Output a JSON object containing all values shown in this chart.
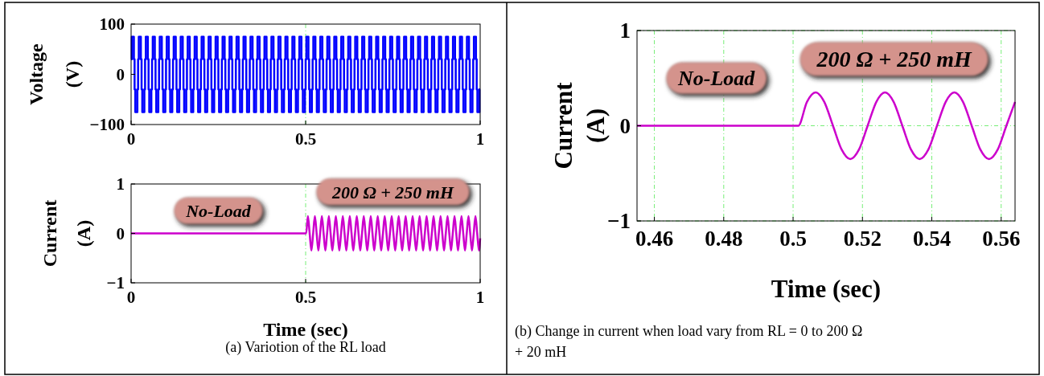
{
  "chart_data": [
    {
      "type": "step",
      "ylabel": "Voltage (V)",
      "xlim": [
        0,
        1
      ],
      "xticks": [
        0,
        0.5,
        1
      ],
      "ylim": [
        -100,
        100
      ],
      "yticks": [
        100,
        0,
        -100
      ],
      "ref_lines": [
        {
          "axis": "x",
          "value": 0.5,
          "color": "#77ee77",
          "line_style": "dashed"
        }
      ],
      "series": [
        {
          "color": "#0000ff",
          "x": [
            0,
            0.002,
            0.008,
            0.01,
            0.012,
            0.018,
            0.02,
            0.022,
            0.028,
            0.03,
            0.032,
            0.038,
            0.04,
            0.042,
            0.048,
            0.05,
            0.052,
            0.058,
            0.06,
            0.062,
            0.068,
            0.07,
            0.072,
            0.078,
            0.08,
            0.082,
            0.088,
            0.09,
            0.092,
            0.098,
            0.1,
            0.102,
            0.108,
            0.11,
            0.112,
            0.118,
            0.12,
            0.122,
            0.128,
            0.13,
            0.132,
            0.138,
            0.14,
            0.142,
            0.148,
            0.15,
            0.152,
            0.158,
            0.16,
            0.162,
            0.168,
            0.17,
            0.172,
            0.178,
            0.18,
            0.182,
            0.188,
            0.19,
            0.192,
            0.198,
            0.2,
            0.202,
            0.208,
            0.21,
            0.212,
            0.218,
            0.22,
            0.222,
            0.228,
            0.23,
            0.232,
            0.238,
            0.24,
            0.242,
            0.248,
            0.25,
            0.252,
            0.258,
            0.26,
            0.262,
            0.268,
            0.27,
            0.272,
            0.278,
            0.28,
            0.282,
            0.288,
            0.29,
            0.292,
            0.298,
            0.3,
            0.302,
            0.308,
            0.31,
            0.312,
            0.318,
            0.32,
            0.322,
            0.328,
            0.33,
            0.332,
            0.338,
            0.34,
            0.342,
            0.348,
            0.35,
            0.352,
            0.358,
            0.36,
            0.362,
            0.368,
            0.37,
            0.372,
            0.378,
            0.38,
            0.382,
            0.388,
            0.39,
            0.392,
            0.398,
            0.4,
            0.402,
            0.408,
            0.41,
            0.412,
            0.418,
            0.42,
            0.422,
            0.428,
            0.43,
            0.432,
            0.438,
            0.44,
            0.442,
            0.448,
            0.45,
            0.452,
            0.458,
            0.46,
            0.462,
            0.468,
            0.47,
            0.472,
            0.478,
            0.48,
            0.482,
            0.488,
            0.49,
            0.492,
            0.498,
            0.5,
            0.502,
            0.508,
            0.51,
            0.512,
            0.518,
            0.52,
            0.522,
            0.528,
            0.53,
            0.532,
            0.538,
            0.54,
            0.542,
            0.548,
            0.55,
            0.552,
            0.558,
            0.56,
            0.562,
            0.568,
            0.57,
            0.572,
            0.578,
            0.58,
            0.582,
            0.588,
            0.59,
            0.592,
            0.598,
            0.6,
            0.602,
            0.608,
            0.61,
            0.612,
            0.618,
            0.62,
            0.622,
            0.628,
            0.63,
            0.632,
            0.638,
            0.64,
            0.642,
            0.648,
            0.65,
            0.652,
            0.658,
            0.66,
            0.662,
            0.668,
            0.67,
            0.672,
            0.678,
            0.68,
            0.682,
            0.688,
            0.69,
            0.692,
            0.698,
            0.7,
            0.702,
            0.708,
            0.71,
            0.712,
            0.718,
            0.72,
            0.722,
            0.728,
            0.73,
            0.732,
            0.738,
            0.74,
            0.742,
            0.748,
            0.75,
            0.752,
            0.758,
            0.76,
            0.762,
            0.768,
            0.77,
            0.772,
            0.778,
            0.78,
            0.782,
            0.788,
            0.79,
            0.792,
            0.798,
            0.8,
            0.802,
            0.808,
            0.81,
            0.812,
            0.818,
            0.82,
            0.822,
            0.828,
            0.83,
            0.832,
            0.838,
            0.84,
            0.842,
            0.848,
            0.85,
            0.852,
            0.858,
            0.86,
            0.862,
            0.868,
            0.87,
            0.872,
            0.878,
            0.88,
            0.882,
            0.888,
            0.89,
            0.892,
            0.898,
            0.9,
            0.902,
            0.908,
            0.91,
            0.912,
            0.918,
            0.92,
            0.922,
            0.928,
            0.93,
            0.932,
            0.938,
            0.94,
            0.942,
            0.948,
            0.95,
            0.952,
            0.958,
            0.96,
            0.962,
            0.968,
            0.97,
            0.972,
            0.978,
            0.98,
            0.982,
            0.988,
            0.99,
            0.992,
            0.998,
            1
          ],
          "values": [
            30,
            75,
            30,
            -30,
            -75,
            -30,
            30,
            75,
            30,
            -30,
            -75,
            -30,
            30,
            75,
            30,
            -30,
            -75,
            -30,
            30,
            75,
            30,
            -30,
            -75,
            -30,
            30,
            75,
            30,
            -30,
            -75,
            -30,
            30,
            75,
            30,
            -30,
            -75,
            -30,
            30,
            75,
            30,
            -30,
            -75,
            -30,
            30,
            75,
            30,
            -30,
            -75,
            -30,
            30,
            75,
            30,
            -30,
            -75,
            -30,
            30,
            75,
            30,
            -30,
            -75,
            -30,
            30,
            75,
            30,
            -30,
            -75,
            -30,
            30,
            75,
            30,
            -30,
            -75,
            -30,
            30,
            75,
            30,
            -30,
            -75,
            -30,
            30,
            75,
            30,
            -30,
            -75,
            -30,
            30,
            75,
            30,
            -30,
            -75,
            -30,
            30,
            75,
            30,
            -30,
            -75,
            -30,
            30,
            75,
            30,
            -30,
            -75,
            -30,
            30,
            75,
            30,
            -30,
            -75,
            -30,
            30,
            75,
            30,
            -30,
            -75,
            -30,
            30,
            75,
            30,
            -30,
            -75,
            -30,
            30,
            75,
            30,
            -30,
            -75,
            -30,
            30,
            75,
            30,
            -30,
            -75,
            -30,
            30,
            75,
            30,
            -30,
            -75,
            -30,
            30,
            75,
            30,
            -30,
            -75,
            -30,
            30,
            75,
            30,
            -30,
            -75,
            -30,
            30,
            75,
            30,
            -30,
            -75,
            -30,
            30,
            75,
            30,
            -30,
            -75,
            -30,
            30,
            75,
            30,
            -30,
            -75,
            -30,
            30,
            75,
            30,
            -30,
            -75,
            -30,
            30,
            75,
            30,
            -30,
            -75,
            -30,
            30,
            75,
            30,
            -30,
            -75,
            -30,
            30,
            75,
            30,
            -30,
            -75,
            -30,
            30,
            75,
            30,
            -30,
            -75,
            -30,
            30,
            75,
            30,
            -30,
            -75,
            -30,
            30,
            75,
            30,
            -30,
            -75,
            -30,
            30,
            75,
            30,
            -30,
            -75,
            -30,
            30,
            75,
            30,
            -30,
            -75,
            -30,
            30,
            75,
            30,
            -30,
            -75,
            -30,
            30,
            75,
            30,
            -30,
            -75,
            -30,
            30,
            75,
            30,
            -30,
            -75,
            -30,
            30,
            75,
            30,
            -30,
            -75,
            -30,
            30,
            75,
            30,
            -30,
            -75,
            -30,
            30,
            75,
            30,
            -30,
            -75,
            -30,
            30,
            75,
            30,
            -30,
            -75,
            -30,
            30,
            75,
            30,
            -30,
            -75,
            -30,
            30,
            75,
            30,
            -30,
            -75,
            -30,
            30,
            75,
            30,
            -30,
            -75,
            -30,
            30,
            75,
            30,
            -30,
            -75,
            -30,
            30,
            75,
            30,
            -30,
            -75,
            -30,
            30,
            75,
            30,
            -30,
            -75,
            -30,
            -30
          ]
        }
      ]
    },
    {
      "type": "line",
      "xlabel": "Time (sec)",
      "ylabel": "Current (A)",
      "xlim": [
        0,
        1
      ],
      "xticks": [
        0,
        0.5,
        1
      ],
      "ylim": [
        -1,
        1
      ],
      "yticks": [
        1,
        0,
        -1
      ],
      "ref_lines": [
        {
          "axis": "x",
          "value": 0.5,
          "color": "#77ee77",
          "line_style": "dashed"
        }
      ],
      "annotations": [
        "No-Load",
        "200 Ω + 250 mH",
        "(a) Variotion of the RL load"
      ],
      "series": [
        {
          "color": "#cc00cc",
          "x": [
            0,
            0.5,
            0.5015,
            0.5065,
            0.5115,
            0.5165,
            0.5215,
            0.5265,
            0.5315,
            0.5365,
            0.5415,
            0.5465,
            0.5515,
            0.5565,
            0.5615,
            0.5665,
            0.5715,
            0.5765,
            0.5815,
            0.5865,
            0.5915,
            0.5965,
            0.6015,
            0.6065,
            0.6115,
            0.6165,
            0.6215,
            0.6265,
            0.6315,
            0.6365,
            0.6415,
            0.6465,
            0.6515,
            0.6565,
            0.6615,
            0.6665,
            0.6715,
            0.6765,
            0.6815,
            0.6865,
            0.6915,
            0.6965,
            0.7015,
            0.7065,
            0.7115,
            0.7165,
            0.7215,
            0.7265,
            0.7315,
            0.7365,
            0.7415,
            0.7465,
            0.7515,
            0.7565,
            0.7615,
            0.7665,
            0.7715,
            0.7765,
            0.7815,
            0.7865,
            0.7915,
            0.7965,
            0.8015,
            0.8065,
            0.8115,
            0.8165,
            0.8215,
            0.8265,
            0.8315,
            0.8365,
            0.8415,
            0.8465,
            0.8515,
            0.8565,
            0.8615,
            0.8665,
            0.8715,
            0.8765,
            0.8815,
            0.8865,
            0.8915,
            0.8965,
            0.9015,
            0.9065,
            0.9115,
            0.9165,
            0.9215,
            0.9265,
            0.9315,
            0.9365,
            0.9415,
            0.9465,
            0.9515,
            0.9565,
            0.9615,
            0.9665,
            0.9715,
            0.9765,
            0.9815,
            0.9865,
            0.9915,
            0.9965,
            1
          ],
          "values": [
            0,
            0,
            0,
            0.35,
            0,
            -0.35,
            0,
            0.35,
            0,
            -0.35,
            0,
            0.35,
            0,
            -0.35,
            0,
            0.35,
            0,
            -0.35,
            0,
            0.35,
            0,
            -0.35,
            0,
            0.35,
            0,
            -0.35,
            0,
            0.35,
            0,
            -0.35,
            0,
            0.35,
            0,
            -0.35,
            0,
            0.35,
            0,
            -0.35,
            0,
            0.35,
            0,
            -0.35,
            0,
            0.35,
            0,
            -0.35,
            0,
            0.35,
            0,
            -0.35,
            0,
            0.35,
            0,
            -0.35,
            0,
            0.35,
            0,
            -0.35,
            0,
            0.35,
            0,
            -0.35,
            0,
            0.35,
            0,
            -0.35,
            0,
            0.35,
            0,
            -0.35,
            0,
            0.35,
            0,
            -0.35,
            0,
            0.35,
            0,
            -0.35,
            0,
            0.35,
            0,
            -0.35,
            0,
            0.35,
            0,
            -0.35,
            0,
            0.35,
            0,
            -0.35,
            0,
            0.35,
            0,
            -0.35,
            0,
            0.35,
            0,
            -0.35,
            0,
            0.35,
            0,
            -0.35,
            -0.1
          ]
        }
      ]
    },
    {
      "type": "line",
      "xlabel": "Time (sec)",
      "ylabel": "Current (A)",
      "xlim": [
        0.455,
        0.564
      ],
      "xticks": [
        0.46,
        0.48,
        0.5,
        0.52,
        0.54,
        0.56
      ],
      "ylim": [
        -1,
        1
      ],
      "yticks": [
        1,
        0,
        -1
      ],
      "grid": true,
      "annotations": [
        "No-Load",
        "200 Ω + 250 mH",
        "(b) Change in current when load vary from RL = 0 to 200 Ω + 20 mH"
      ],
      "series": [
        {
          "color": "#cc00cc",
          "x": [
            0.455,
            0.5,
            0.5015,
            0.504,
            0.5065,
            0.509,
            0.5115,
            0.514,
            0.5165,
            0.519,
            0.5215,
            0.524,
            0.5265,
            0.529,
            0.5315,
            0.534,
            0.5365,
            0.539,
            0.5415,
            0.544,
            0.5465,
            0.549,
            0.5515,
            0.554,
            0.5565,
            0.559,
            0.5615,
            0.564
          ],
          "values": [
            0,
            0,
            0,
            0.25,
            0.35,
            0.25,
            0,
            -0.25,
            -0.35,
            -0.25,
            0,
            0.25,
            0.35,
            0.25,
            0,
            -0.25,
            -0.35,
            -0.25,
            0,
            0.25,
            0.35,
            0.25,
            0,
            -0.25,
            -0.35,
            -0.25,
            0,
            0.25
          ]
        }
      ]
    }
  ]
}
